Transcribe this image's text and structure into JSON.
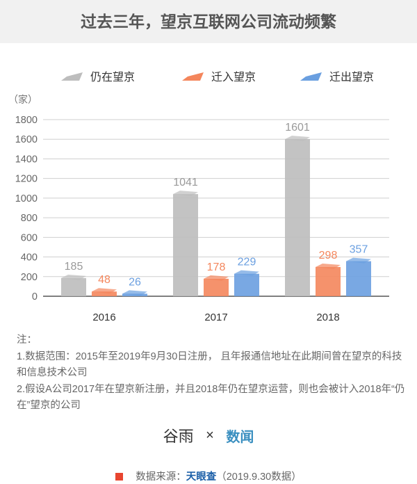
{
  "title": "过去三年，望京互联网公司流动频繁",
  "chart_data": {
    "type": "bar",
    "title": "过去三年，望京互联网公司流动频繁",
    "ylabel": "（家）",
    "ylim": [
      0,
      1800
    ],
    "yticks": [
      0,
      200,
      400,
      600,
      800,
      1000,
      1200,
      1400,
      1600,
      1800
    ],
    "categories": [
      "2016",
      "2017",
      "2018"
    ],
    "legend_position": "top",
    "grid": true,
    "series": [
      {
        "name": "仍在望京",
        "color": "#bdbdbd",
        "values": [
          185,
          1041,
          1601
        ]
      },
      {
        "name": "迁入望京",
        "color": "#f4865c",
        "values": [
          48,
          178,
          298
        ]
      },
      {
        "name": "迁出望京",
        "color": "#6a9fe0",
        "values": [
          26,
          229,
          357
        ]
      }
    ]
  },
  "notes": {
    "heading": "注：",
    "items": [
      "1.数据范围：2015年至2019年9月30日注册， 且年报通信地址在此期间曾在望京的科技和信息技术公司",
      "2.假设A公司2017年在望京新注册，并且2018年仍在望京运营，则也会被计入2018年“仍在”望京的公司"
    ]
  },
  "logos": {
    "left": "谷雨",
    "sep": "×",
    "right": "数闻"
  },
  "source": {
    "label": "数据来源：",
    "brand": "天眼查",
    "date": "（2019.9.30数据）"
  }
}
